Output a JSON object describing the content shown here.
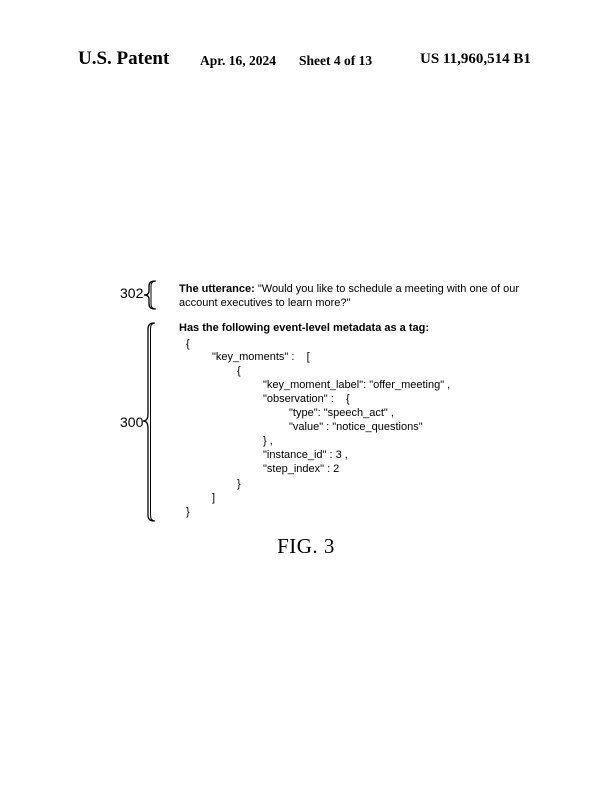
{
  "header": {
    "patent_label": "U.S. Patent",
    "date": "Apr. 16, 2024",
    "sheet": "Sheet 4 of 13",
    "patent_number": "US 11,960,514 B1"
  },
  "figure": {
    "ref_302": "302",
    "ref_300": "300",
    "utterance_label": "The utterance:",
    "utterance_line1": " \"Would you like to schedule a meeting with one of our",
    "utterance_line2": "account executives to learn more?\"",
    "metadata_heading": "Has the following event-level metadata as a tag:",
    "code_lines": [
      "{",
      "\"key_moments\" :    [",
      "{",
      "\"key_moment_label\": \"offer_meeting\" ,",
      "\"observation\" :    {",
      "\"type\": \"speech_act\" ,",
      "\"value\" : \"notice_questions\"",
      "} ,",
      "\"instance_id\" : 3 ,",
      "\"step_index\" : 2",
      "}",
      "]",
      "}"
    ],
    "caption": "FIG. 3"
  }
}
